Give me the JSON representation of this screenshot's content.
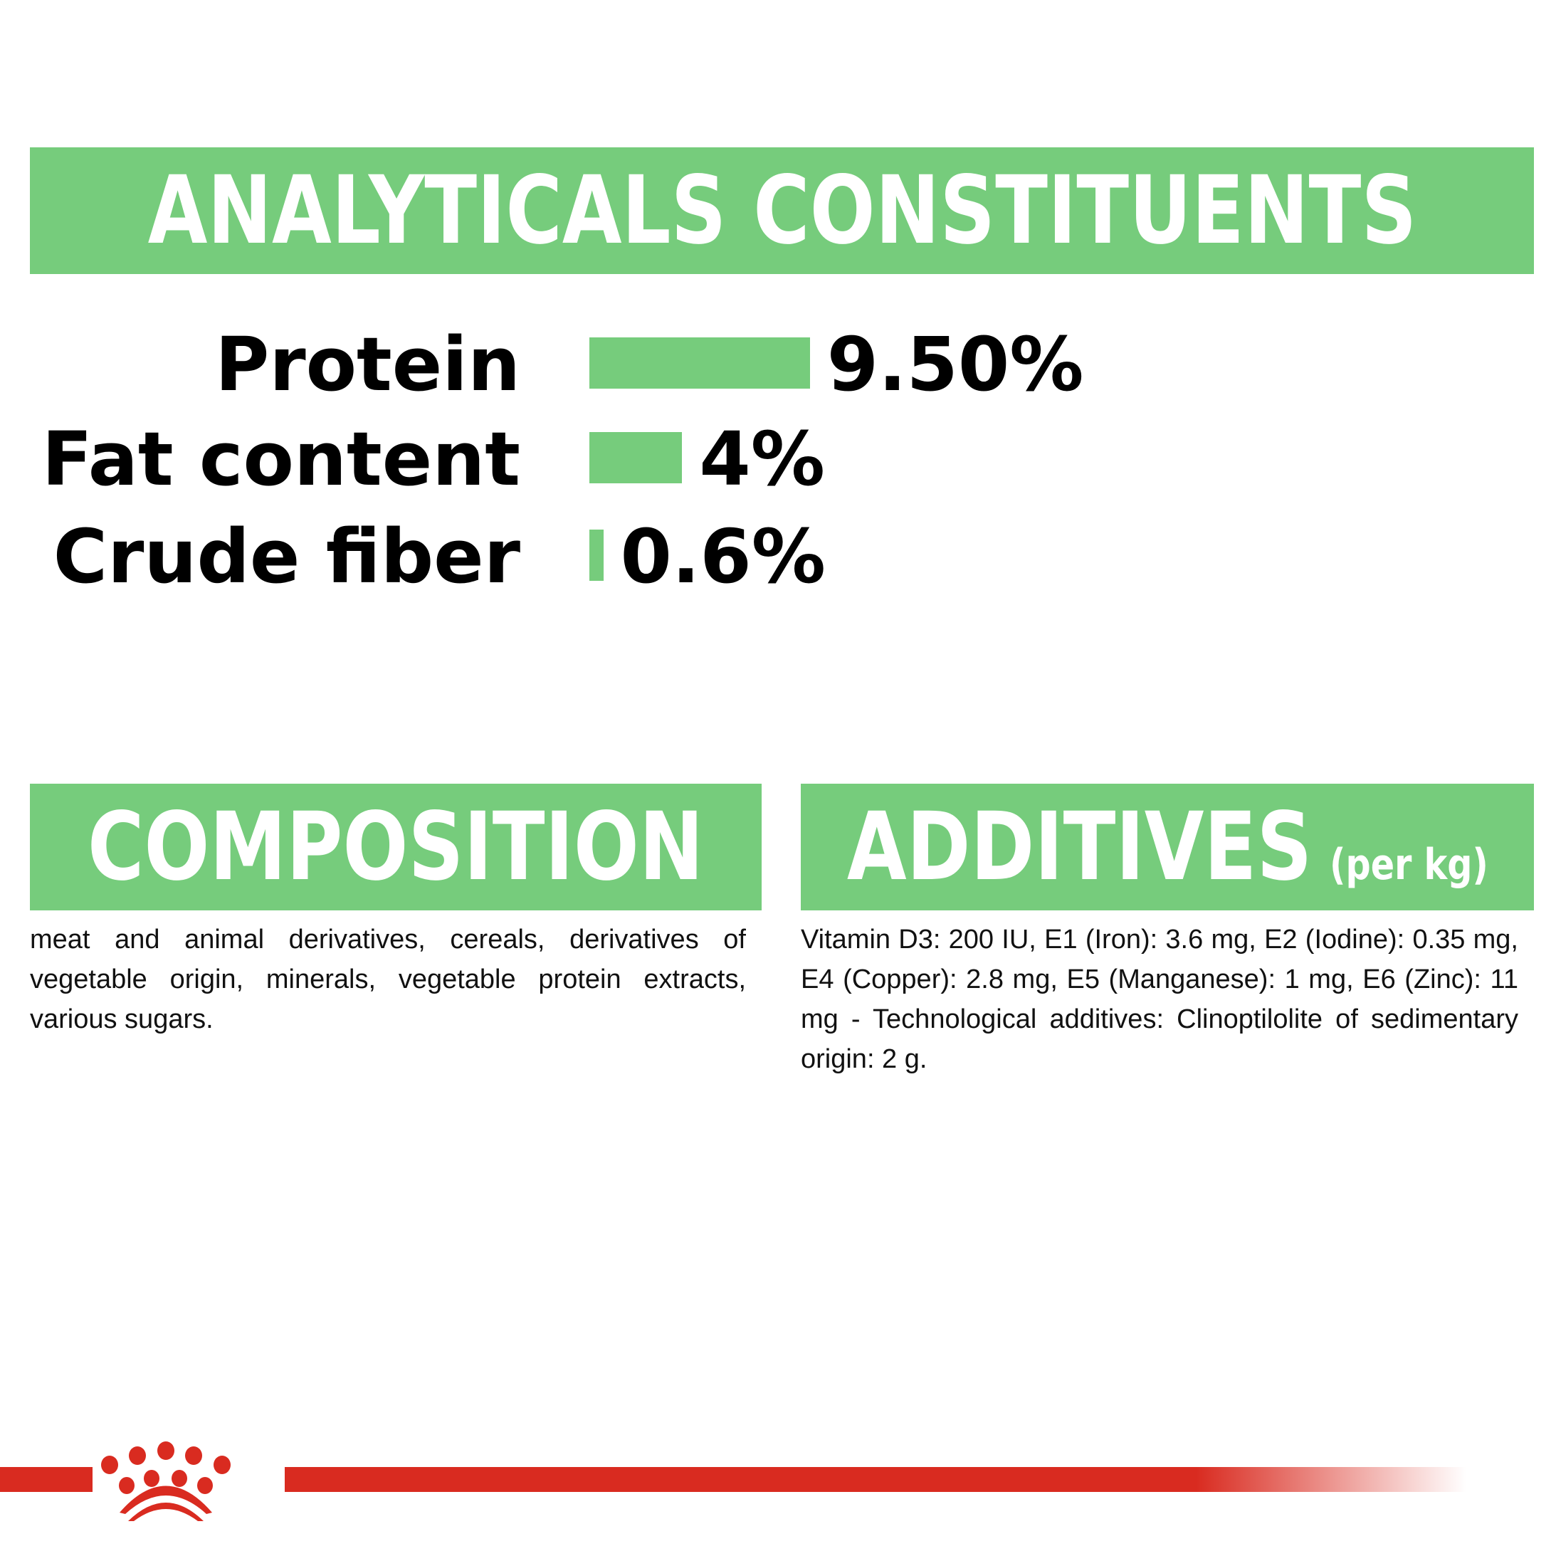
{
  "header": {
    "title": "ANALYTICALS CONSTITUENTS"
  },
  "analytics": [
    {
      "label": "Protein",
      "value": "9.50%",
      "percent": 9.5
    },
    {
      "label": "Fat content",
      "value": "4%",
      "percent": 4
    },
    {
      "label": "Crude fiber",
      "value": "0.6%",
      "percent": 0.6
    }
  ],
  "composition": {
    "title": "COMPOSITION",
    "text": "meat and animal derivatives, cereals, derivatives of vegetable origin, minerals, vegetable protein extracts, various sugars."
  },
  "additives": {
    "title": "ADDITIVES",
    "subtitle": "(per kg)",
    "text": "Vitamin D3: 200 IU, E1 (Iron): 3.6 mg, E2 (Iodine): 0.35 mg, E4 (Copper): 2.8 mg, E5 (Manganese): 1 mg, E6 (Zinc): 11 mg - Technological additives: Clinoptilolite of sedimentary origin: 2 g."
  },
  "colors": {
    "accent_green": "#76cc7c",
    "brand_red": "#d92b20"
  },
  "footer": {
    "logo_icon": "royal-canin-crown-logo"
  }
}
